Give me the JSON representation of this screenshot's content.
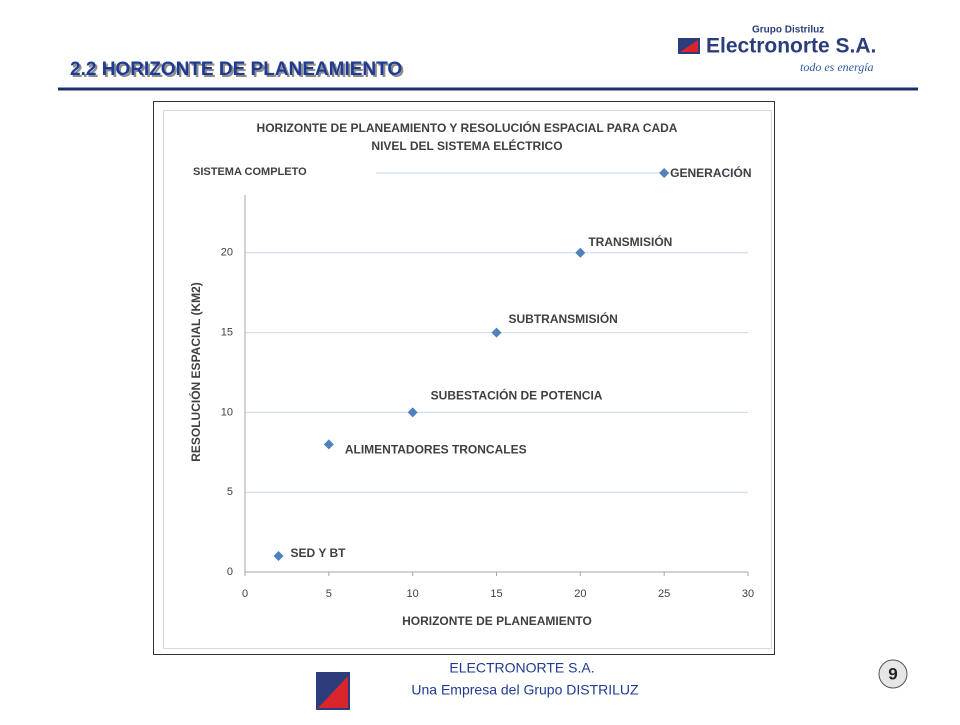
{
  "header": {
    "title": "2.2  HORIZONTE DE PLANEAMIENTO",
    "logo_group": "Grupo Distriluz",
    "logo_company": "Electronorte S.A.",
    "logo_slogan": "todo es energía"
  },
  "chart_data": {
    "type": "scatter",
    "title": [
      "HORIZONTE DE PLANEAMIENTO Y RESOLUCIÓN ESPACIAL PARA CADA",
      "NIVEL DEL SISTEMA ELÉCTRICO"
    ],
    "xlabel": "HORIZONTE DE PLANEAMIENTO",
    "ylabel": "RESOLUCIÓN ESPACIAL (KM2)",
    "annotation": "SISTEMA COMPLETO",
    "xlim": [
      0,
      30
    ],
    "xticks": [
      0,
      5,
      10,
      15,
      20,
      25,
      30
    ],
    "ylim": [
      0,
      25
    ],
    "yticks": [
      0,
      5,
      10,
      15,
      20
    ],
    "grid": true,
    "series": [
      {
        "color": "#4f81bd",
        "x": [
          2,
          5,
          10,
          15,
          20,
          25
        ],
        "values": [
          1,
          8,
          10,
          15,
          20,
          25
        ],
        "labels": [
          "SED Y BT",
          "ALIMENTADORES TRONCALES",
          "SUBESTACIÓN DE POTENCIA",
          "SUBTRANSMISIÓN",
          "TRANSMISIÓN",
          "GENERACIÓN"
        ]
      }
    ]
  },
  "footer": {
    "company": "ELECTRONORTE S.A.",
    "subtitle": "Una Empresa del Grupo DISTRILUZ",
    "page": "9"
  }
}
